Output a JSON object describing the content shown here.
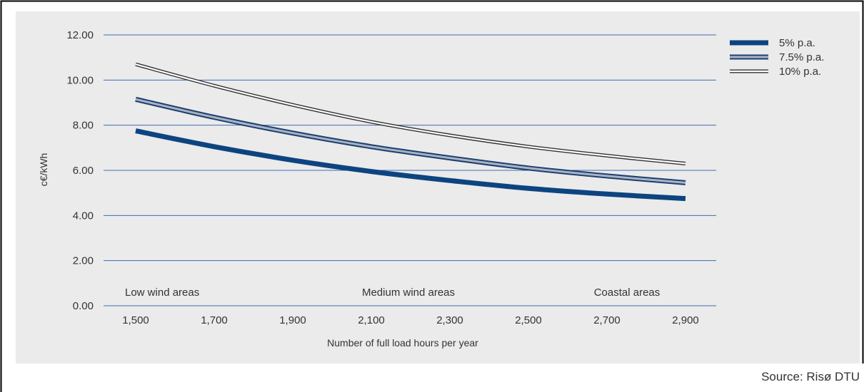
{
  "chart_data": {
    "type": "line",
    "ylabel": "c€/kWh",
    "xlabel": "Number of full load hours per year",
    "ylim": [
      0,
      12
    ],
    "xlim": [
      1500,
      2900
    ],
    "y_ticks": [
      "0.00",
      "2.00",
      "4.00",
      "6.00",
      "8.00",
      "10.00",
      "12.00"
    ],
    "x_ticks": [
      "1,500",
      "1,700",
      "1,900",
      "2,100",
      "2,300",
      "2,500",
      "2,700",
      "2,900"
    ],
    "grid": true,
    "legend_position": "top-right",
    "region_labels": [
      "Low wind areas",
      "Medium wind areas",
      "Coastal areas"
    ],
    "series": [
      {
        "name": "5% p.a.",
        "color": "#0d4480",
        "x": [
          1500,
          1700,
          1900,
          2100,
          2300,
          2500,
          2700,
          2900
        ],
        "y": [
          7.75,
          7.05,
          6.45,
          5.95,
          5.55,
          5.2,
          4.95,
          4.75
        ]
      },
      {
        "name": "7.5% p.a.",
        "color": "#5b6e8e",
        "x": [
          1500,
          1700,
          1900,
          2100,
          2300,
          2500,
          2700,
          2900
        ],
        "y": [
          9.15,
          8.35,
          7.65,
          7.05,
          6.55,
          6.1,
          5.75,
          5.45
        ]
      },
      {
        "name": "10% p.a.",
        "color": "#333333",
        "x": [
          1500,
          1700,
          1900,
          2100,
          2300,
          2500,
          2700,
          2900
        ],
        "y": [
          10.7,
          9.75,
          8.9,
          8.15,
          7.55,
          7.05,
          6.65,
          6.3
        ]
      }
    ]
  },
  "source": "Source: Risø DTU",
  "colors": {
    "background": "#ebebeb",
    "grid": "#3d6cb0",
    "border": "#000000"
  }
}
